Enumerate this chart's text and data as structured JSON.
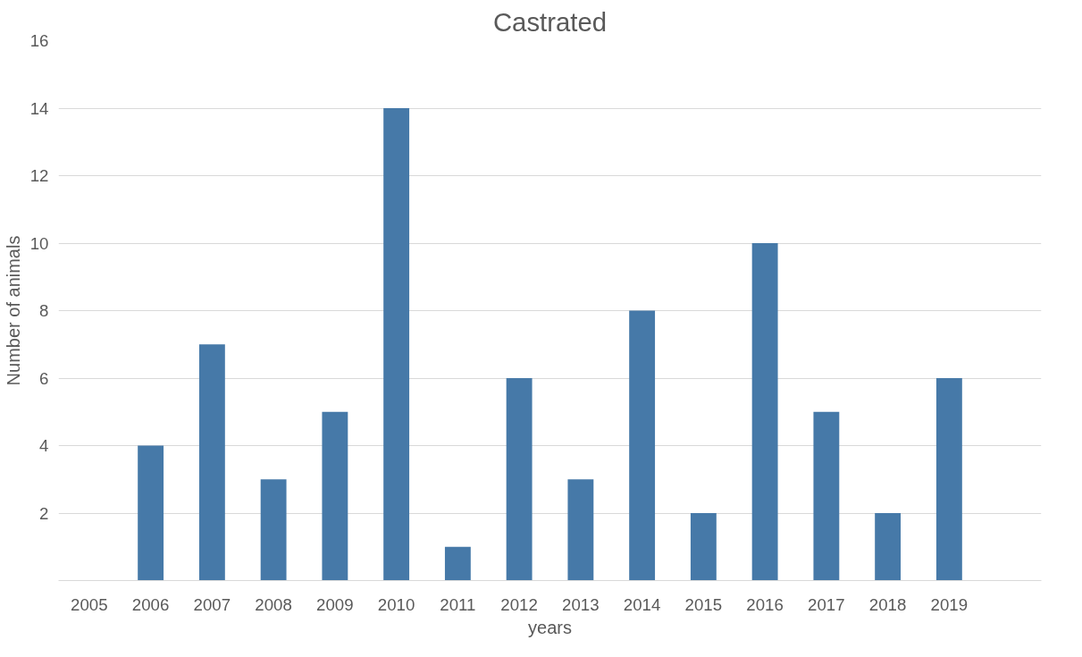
{
  "chart_data": {
    "type": "bar",
    "title": "Castrated",
    "xlabel": "years",
    "ylabel": "Number of animals",
    "categories": [
      "2005",
      "2006",
      "2007",
      "2008",
      "2009",
      "2010",
      "2011",
      "2012",
      "2013",
      "2014",
      "2015",
      "2016",
      "2017",
      "2018",
      "2019",
      null
    ],
    "values": [
      0,
      4,
      7,
      3,
      5,
      14,
      1,
      6,
      3,
      8,
      2,
      10,
      5,
      2,
      6,
      null
    ],
    "color": "#4679a8",
    "ylim": [
      0,
      16
    ],
    "yticks": [
      {
        "value": 0,
        "label": null
      },
      2,
      4,
      6,
      8,
      10,
      12,
      14,
      16
    ],
    "grid": "y"
  }
}
